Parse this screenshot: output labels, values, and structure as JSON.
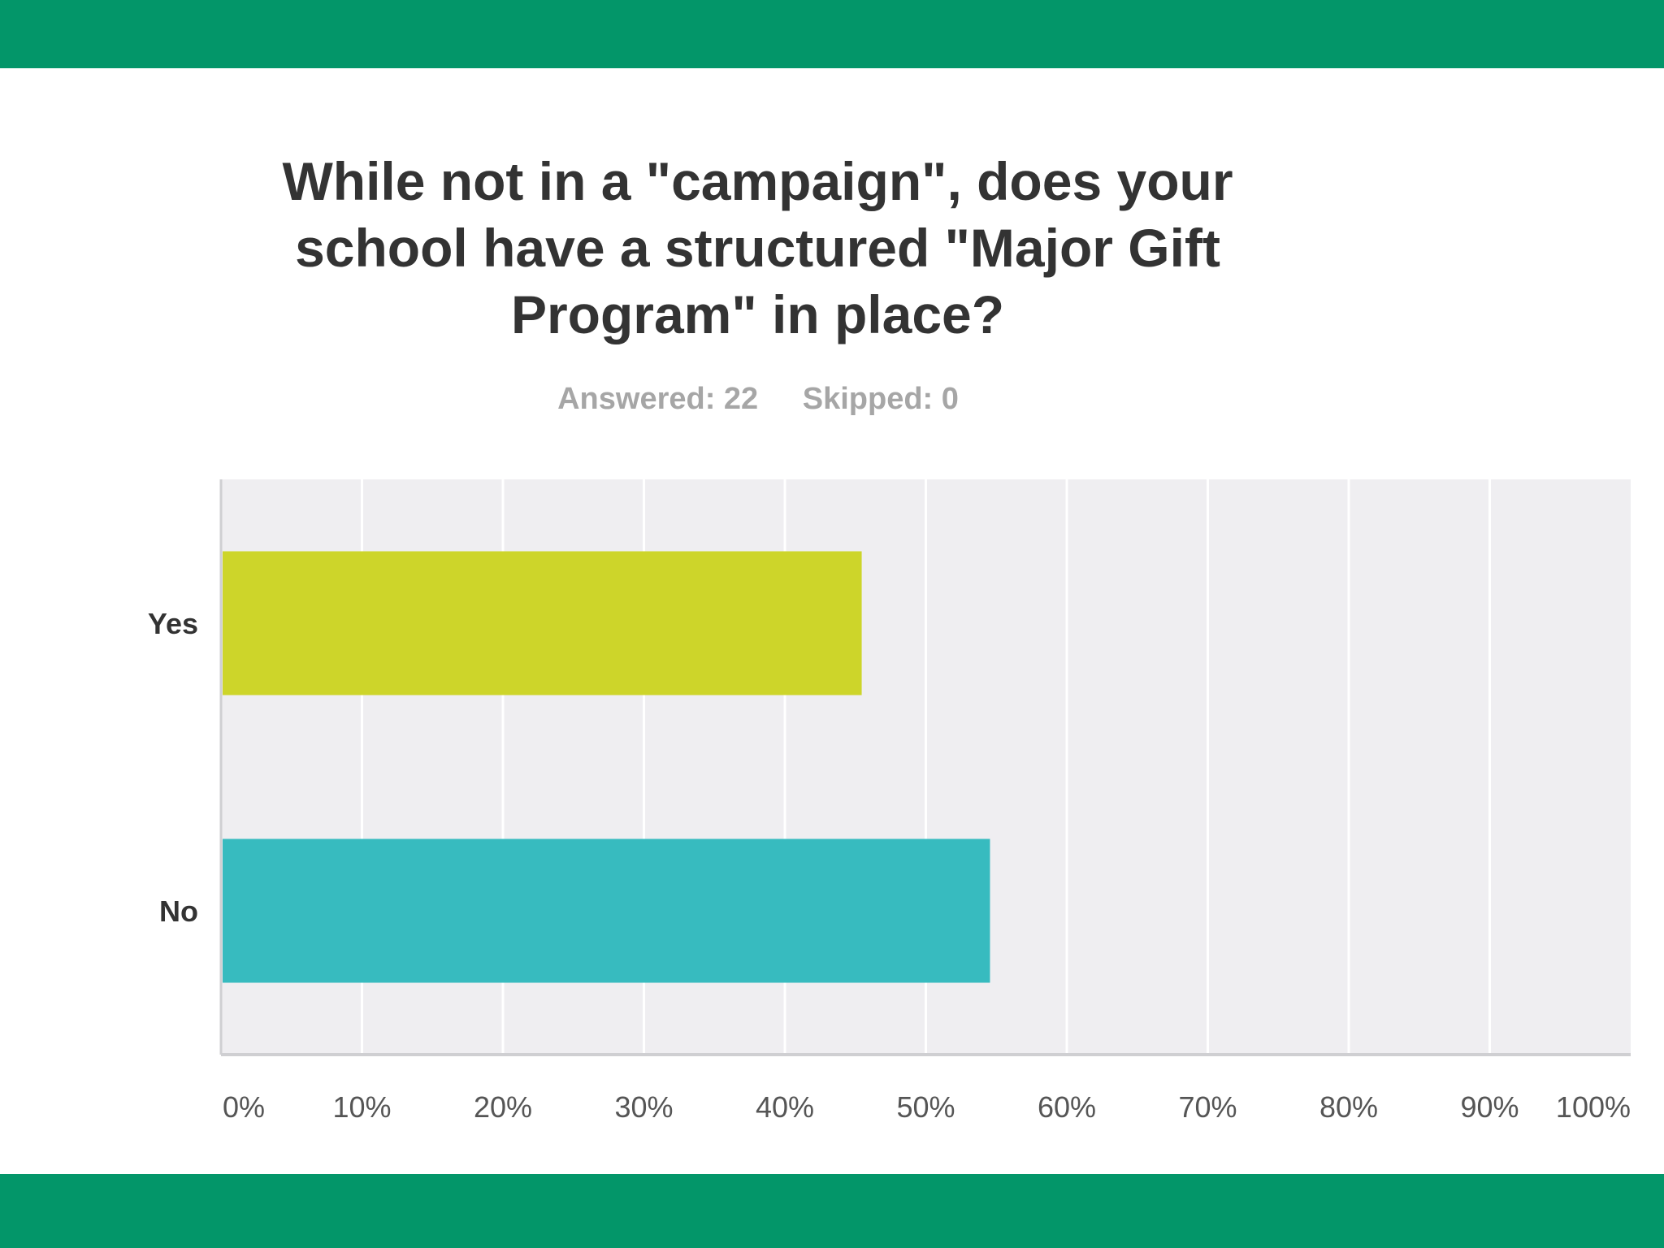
{
  "colors": {
    "band": "#039669",
    "plot_bg": "#efeef1",
    "grid": "#ffffff",
    "axis": "#cfcfd2",
    "yes_bar": "#cdd52a",
    "no_bar": "#37bbbf",
    "label": "#333333",
    "tick": "#555555"
  },
  "header": {
    "answered": "Answered: 22",
    "skipped": "Skipped: 0"
  },
  "chart_data": {
    "type": "bar",
    "orientation": "horizontal",
    "title": "While not in a \"campaign\", does your school have a structured \"Major Gift Program\" in place?",
    "categories": [
      "Yes",
      "No"
    ],
    "values": [
      45.45,
      54.55
    ],
    "bar_colors": [
      "#cdd52a",
      "#37bbbf"
    ],
    "xlim": [
      0,
      100
    ],
    "x_ticks": [
      "0%",
      "10%",
      "20%",
      "30%",
      "40%",
      "50%",
      "60%",
      "70%",
      "80%",
      "90%",
      "100%"
    ],
    "grid": true
  }
}
